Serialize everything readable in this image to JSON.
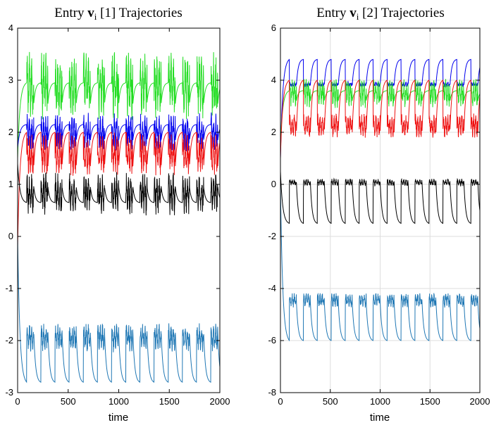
{
  "chart_data": [
    {
      "type": "line",
      "title": {
        "prefix": "Entry ",
        "vector": "v",
        "subscript": "i",
        "suffix": " [1] Trajectories"
      },
      "xlabel": "time",
      "ylabel": "",
      "xlim": [
        0,
        2000
      ],
      "ylim": [
        -3,
        4
      ],
      "xticks": [
        0,
        500,
        1000,
        1500,
        2000
      ],
      "yticks": [
        -3,
        -2,
        -1,
        0,
        1,
        2,
        3,
        4
      ],
      "grid": false,
      "period": 140,
      "series": [
        {
          "name": "green",
          "color": "#22dd22",
          "start": 1.5,
          "low": 2.55,
          "high": 2.95,
          "noise_range": [
            2.55,
            3.25
          ],
          "shape": "rise"
        },
        {
          "name": "blue",
          "color": "#0000ee",
          "start": 1.7,
          "low": 1.85,
          "high": 2.15,
          "noise_range": [
            1.8,
            2.2
          ],
          "shape": "rise"
        },
        {
          "name": "red",
          "color": "#ee1111",
          "start": -0.2,
          "low": 1.35,
          "high": 2.0,
          "noise_range": [
            1.35,
            1.8
          ],
          "shape": "rise"
        },
        {
          "name": "black",
          "color": "#000000",
          "start": 1.4,
          "low": 0.65,
          "high": 0.95,
          "noise_range": [
            0.6,
            1.05
          ],
          "shape": "fall"
        },
        {
          "name": "teal",
          "color": "#1f77b4",
          "start": 0.0,
          "low": -2.8,
          "high": -1.85,
          "noise_range": [
            -2.1,
            -1.8
          ],
          "shape": "fall"
        }
      ]
    },
    {
      "type": "line",
      "title": {
        "prefix": "Entry ",
        "vector": "v",
        "subscript": "i",
        "suffix": " [2] Trajectories"
      },
      "xlabel": "time",
      "ylabel": "",
      "xlim": [
        0,
        2000
      ],
      "ylim": [
        -8,
        6
      ],
      "xticks": [
        0,
        500,
        1000,
        1500,
        2000
      ],
      "yticks": [
        -8,
        -6,
        -4,
        -2,
        0,
        2,
        4,
        6
      ],
      "grid": true,
      "period": 140,
      "series": [
        {
          "name": "blue",
          "color": "#0000ee",
          "start": 1.0,
          "low": 3.8,
          "high": 4.8,
          "noise_range": [
            3.8,
            3.9
          ],
          "shape": "rise"
        },
        {
          "name": "green",
          "color": "#22dd22",
          "start": 1.5,
          "low": 3.2,
          "high": 3.6,
          "noise_range": [
            3.2,
            3.8
          ],
          "shape": "rise"
        },
        {
          "name": "red",
          "color": "#ee1111",
          "start": 1.0,
          "low": 2.0,
          "high": 4.0,
          "noise_range": [
            2.0,
            2.5
          ],
          "shape": "rise"
        },
        {
          "name": "black",
          "color": "#000000",
          "start": 0.5,
          "low": -1.5,
          "high": 0.1,
          "noise_range": [
            0.0,
            0.15
          ],
          "shape": "fall"
        },
        {
          "name": "teal",
          "color": "#1f77b4",
          "start": 0.0,
          "low": -6.0,
          "high": -4.5,
          "noise_range": [
            -4.6,
            -4.3
          ],
          "shape": "fall"
        }
      ]
    }
  ]
}
